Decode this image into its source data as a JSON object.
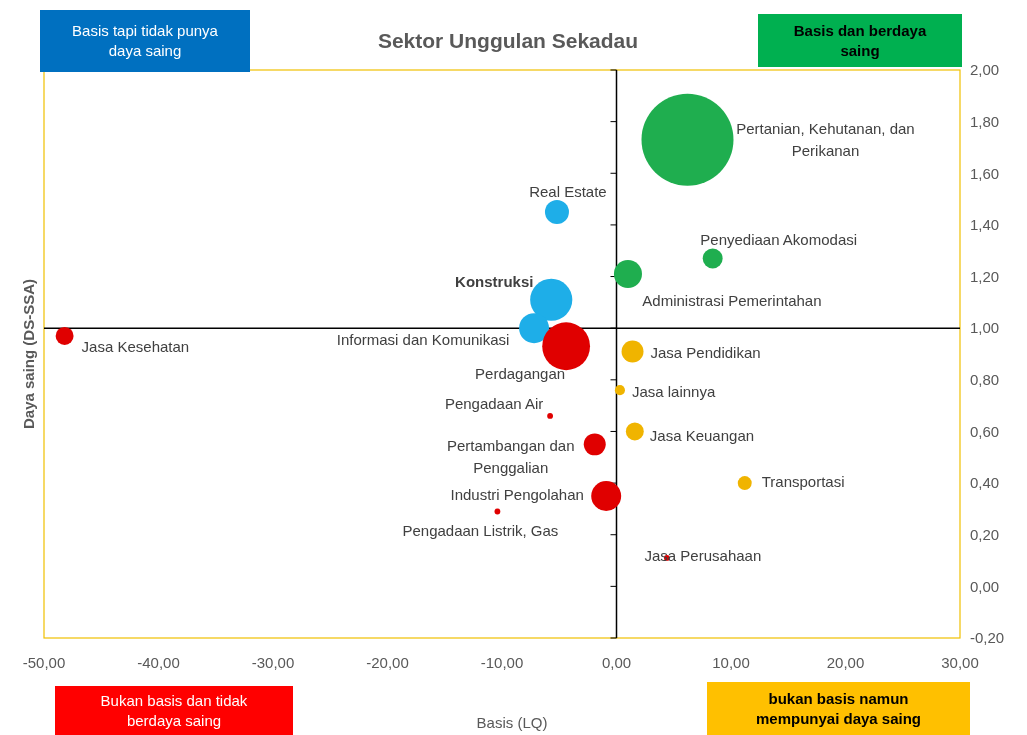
{
  "chart_data": {
    "type": "bubble",
    "title": "Sektor Unggulan Sekadau",
    "xlabel": "Basis (LQ)",
    "ylabel": "Daya saing (DS-SSA)",
    "xlim": [
      -50,
      30
    ],
    "xticks": [
      {
        "value": -50,
        "label": "-50,00"
      },
      {
        "value": -40,
        "label": "-40,00"
      },
      {
        "value": -30,
        "label": "-30,00"
      },
      {
        "value": -20,
        "label": "-20,00"
      },
      {
        "value": -10,
        "label": "-10,00"
      },
      {
        "value": 0,
        "label": "0,00"
      },
      {
        "value": 10,
        "label": "10,00"
      },
      {
        "value": 20,
        "label": "20,00"
      },
      {
        "value": 30,
        "label": "30,00"
      }
    ],
    "ylim": [
      -0.2,
      2
    ],
    "yticks": [
      {
        "value": -0.2,
        "label": "-0,20"
      },
      {
        "value": 0,
        "label": "0,00"
      },
      {
        "value": 0.2,
        "label": "0,20"
      },
      {
        "value": 0.4,
        "label": "0,40"
      },
      {
        "value": 0.6,
        "label": "0,60"
      },
      {
        "value": 0.8,
        "label": "0,80"
      },
      {
        "value": 1,
        "label": "1,00"
      },
      {
        "value": 1.2,
        "label": "1,20"
      },
      {
        "value": 1.4,
        "label": "1,40"
      },
      {
        "value": 1.6,
        "label": "1,60"
      },
      {
        "value": 1.8,
        "label": "1,80"
      },
      {
        "value": 2,
        "label": "2,00"
      }
    ],
    "ref_lines": [
      {
        "axis": "x",
        "value": 0,
        "color": "#000000"
      },
      {
        "axis": "y",
        "value": 1,
        "color": "#000000"
      }
    ],
    "annotations": [
      "Basis tapi tidak punya daya saing",
      "Basis dan berdaya saing",
      "Bukan basis dan tidak berdaya saing",
      "bukan basis namun mempunyai daya saing"
    ],
    "series": [
      {
        "name": "Pertanian, Kehutanan, dan Perikanan",
        "color": "#1fae4f",
        "x": [
          6.2
        ],
        "values": [
          1.73
        ],
        "sizes": [
          1
        ]
      },
      {
        "name": "Real Estate",
        "color": "#1eaee8",
        "x": [
          -5.2
        ],
        "values": [
          1.45
        ],
        "sizes": [
          0.068
        ]
      },
      {
        "name": "Penyediaan Akomodasi",
        "color": "#1fae4f",
        "x": [
          8.4
        ],
        "values": [
          1.27
        ],
        "sizes": [
          0.047
        ]
      },
      {
        "name": "Administrasi Pemerintahan",
        "color": "#1fae4f",
        "x": [
          1.0
        ],
        "values": [
          1.21
        ],
        "sizes": [
          0.093
        ]
      },
      {
        "name": "Konstruksi",
        "color": "#1eaee8",
        "x": [
          -5.7
        ],
        "values": [
          1.11
        ],
        "sizes": [
          0.21
        ]
      },
      {
        "name": "Informasi dan Komunikasi",
        "color": "#1eaee8",
        "x": [
          -7.2
        ],
        "values": [
          1.0
        ],
        "sizes": [
          0.106
        ]
      },
      {
        "name": "Jasa Kesehatan",
        "color": "#e00000",
        "x": [
          -48.2
        ],
        "values": [
          0.97
        ],
        "sizes": [
          0.038
        ]
      },
      {
        "name": "Perdagangan",
        "color": "#e00000",
        "x": [
          -4.4
        ],
        "values": [
          0.93
        ],
        "sizes": [
          0.27
        ]
      },
      {
        "name": "Jasa Pendidikan",
        "color": "#f0b400",
        "x": [
          1.4
        ],
        "values": [
          0.91
        ],
        "sizes": [
          0.057
        ]
      },
      {
        "name": "Jasa lainnya",
        "color": "#f0b400",
        "x": [
          0.3
        ],
        "values": [
          0.76
        ],
        "sizes": [
          0.012
        ]
      },
      {
        "name": "Pengadaan Air",
        "color": "#e00000",
        "x": [
          -5.8
        ],
        "values": [
          0.66
        ],
        "sizes": [
          0.004
        ]
      },
      {
        "name": "Jasa Keuangan",
        "color": "#f0b400",
        "x": [
          1.6
        ],
        "values": [
          0.6
        ],
        "sizes": [
          0.038
        ]
      },
      {
        "name": "Pertambangan dan Penggalian",
        "color": "#e00000",
        "x": [
          -1.9
        ],
        "values": [
          0.55
        ],
        "sizes": [
          0.057
        ]
      },
      {
        "name": "Transportasi",
        "color": "#f0b400",
        "x": [
          11.2
        ],
        "values": [
          0.4
        ],
        "sizes": [
          0.023
        ]
      },
      {
        "name": "Industri Pengolahan",
        "color": "#e00000",
        "x": [
          -0.9
        ],
        "values": [
          0.35
        ],
        "sizes": [
          0.106
        ]
      },
      {
        "name": "Pengadaan Listrik, Gas",
        "color": "#e00000",
        "x": [
          -10.4
        ],
        "values": [
          0.29
        ],
        "sizes": [
          0.004
        ]
      },
      {
        "name": "Jasa Perusahaan",
        "color": "#e00000",
        "x": [
          4.4
        ],
        "values": [
          0.11
        ],
        "sizes": [
          0.004
        ]
      }
    ]
  }
}
